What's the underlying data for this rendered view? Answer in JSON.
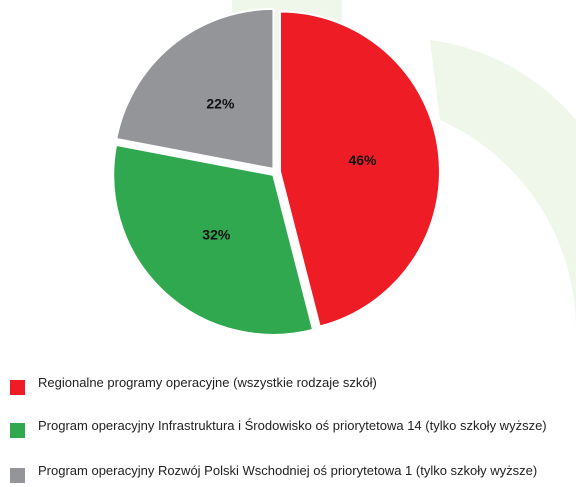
{
  "chart_data": {
    "type": "pie",
    "categories": [
      "Regionalne programy operacyjne (wszystkie rodzaje szkół)",
      "Program operacyjny Infrastruktura i Środowisko oś priorytetowa 14 (tylko szkoły wyższe)",
      "Program operacyjny Rozwój Polski Wschodniej oś priorytetowa 1 (tylko szkoły wyższe)"
    ],
    "values": [
      46,
      32,
      22
    ],
    "value_labels": [
      "46%",
      "32%",
      "22%"
    ],
    "colors": [
      "#ee1c25",
      "#2fa84f",
      "#939598"
    ]
  }
}
